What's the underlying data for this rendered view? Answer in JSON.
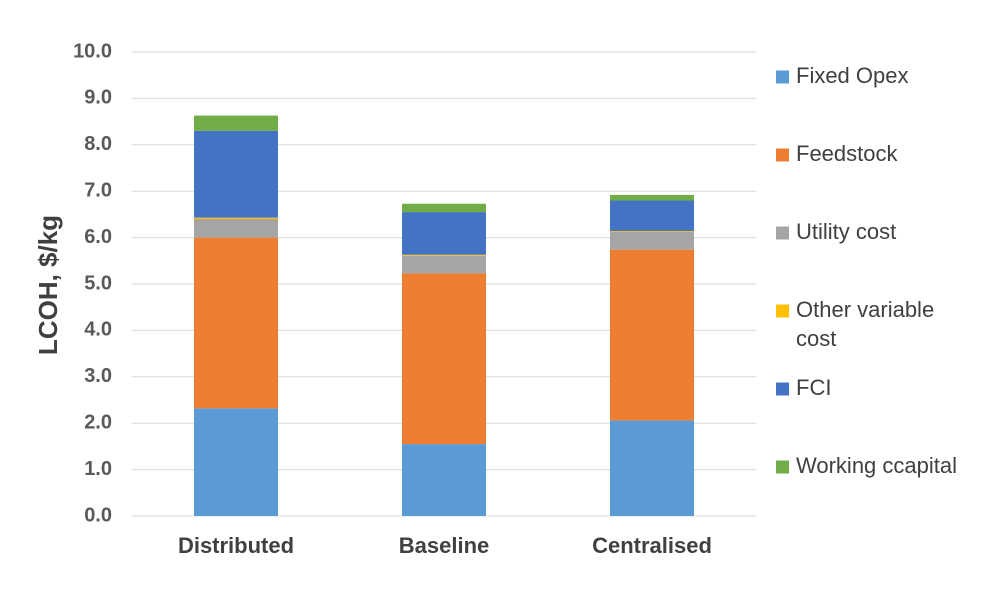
{
  "chart_data": {
    "type": "bar",
    "stacked": true,
    "title": "",
    "xlabel": "",
    "ylabel": "LCOH, $/kg",
    "ylim": [
      0,
      10
    ],
    "yticks": [
      "0.0",
      "1.0",
      "2.0",
      "3.0",
      "4.0",
      "5.0",
      "6.0",
      "7.0",
      "8.0",
      "9.0",
      "10.0"
    ],
    "grid": true,
    "legend_position": "right",
    "categories": [
      "Distributed",
      "Baseline",
      "Centralised"
    ],
    "series": [
      {
        "name": "Fixed Opex",
        "color": "#5b9bd5",
        "values": [
          2.32,
          1.55,
          2.06
        ]
      },
      {
        "name": "Feedstock",
        "color": "#ed7d31",
        "values": [
          3.68,
          3.68,
          3.68
        ]
      },
      {
        "name": "Utility cost",
        "color": "#a5a5a5",
        "values": [
          0.4,
          0.38,
          0.38
        ]
      },
      {
        "name": "Other variable cost",
        "color": "#ffc000",
        "values": [
          0.03,
          0.02,
          0.02
        ]
      },
      {
        "name": "FCI",
        "color": "#4472c4",
        "values": [
          1.87,
          0.92,
          0.66
        ]
      },
      {
        "name": "Working ccapital",
        "color": "#70ad47",
        "values": [
          0.33,
          0.18,
          0.12
        ]
      }
    ]
  }
}
